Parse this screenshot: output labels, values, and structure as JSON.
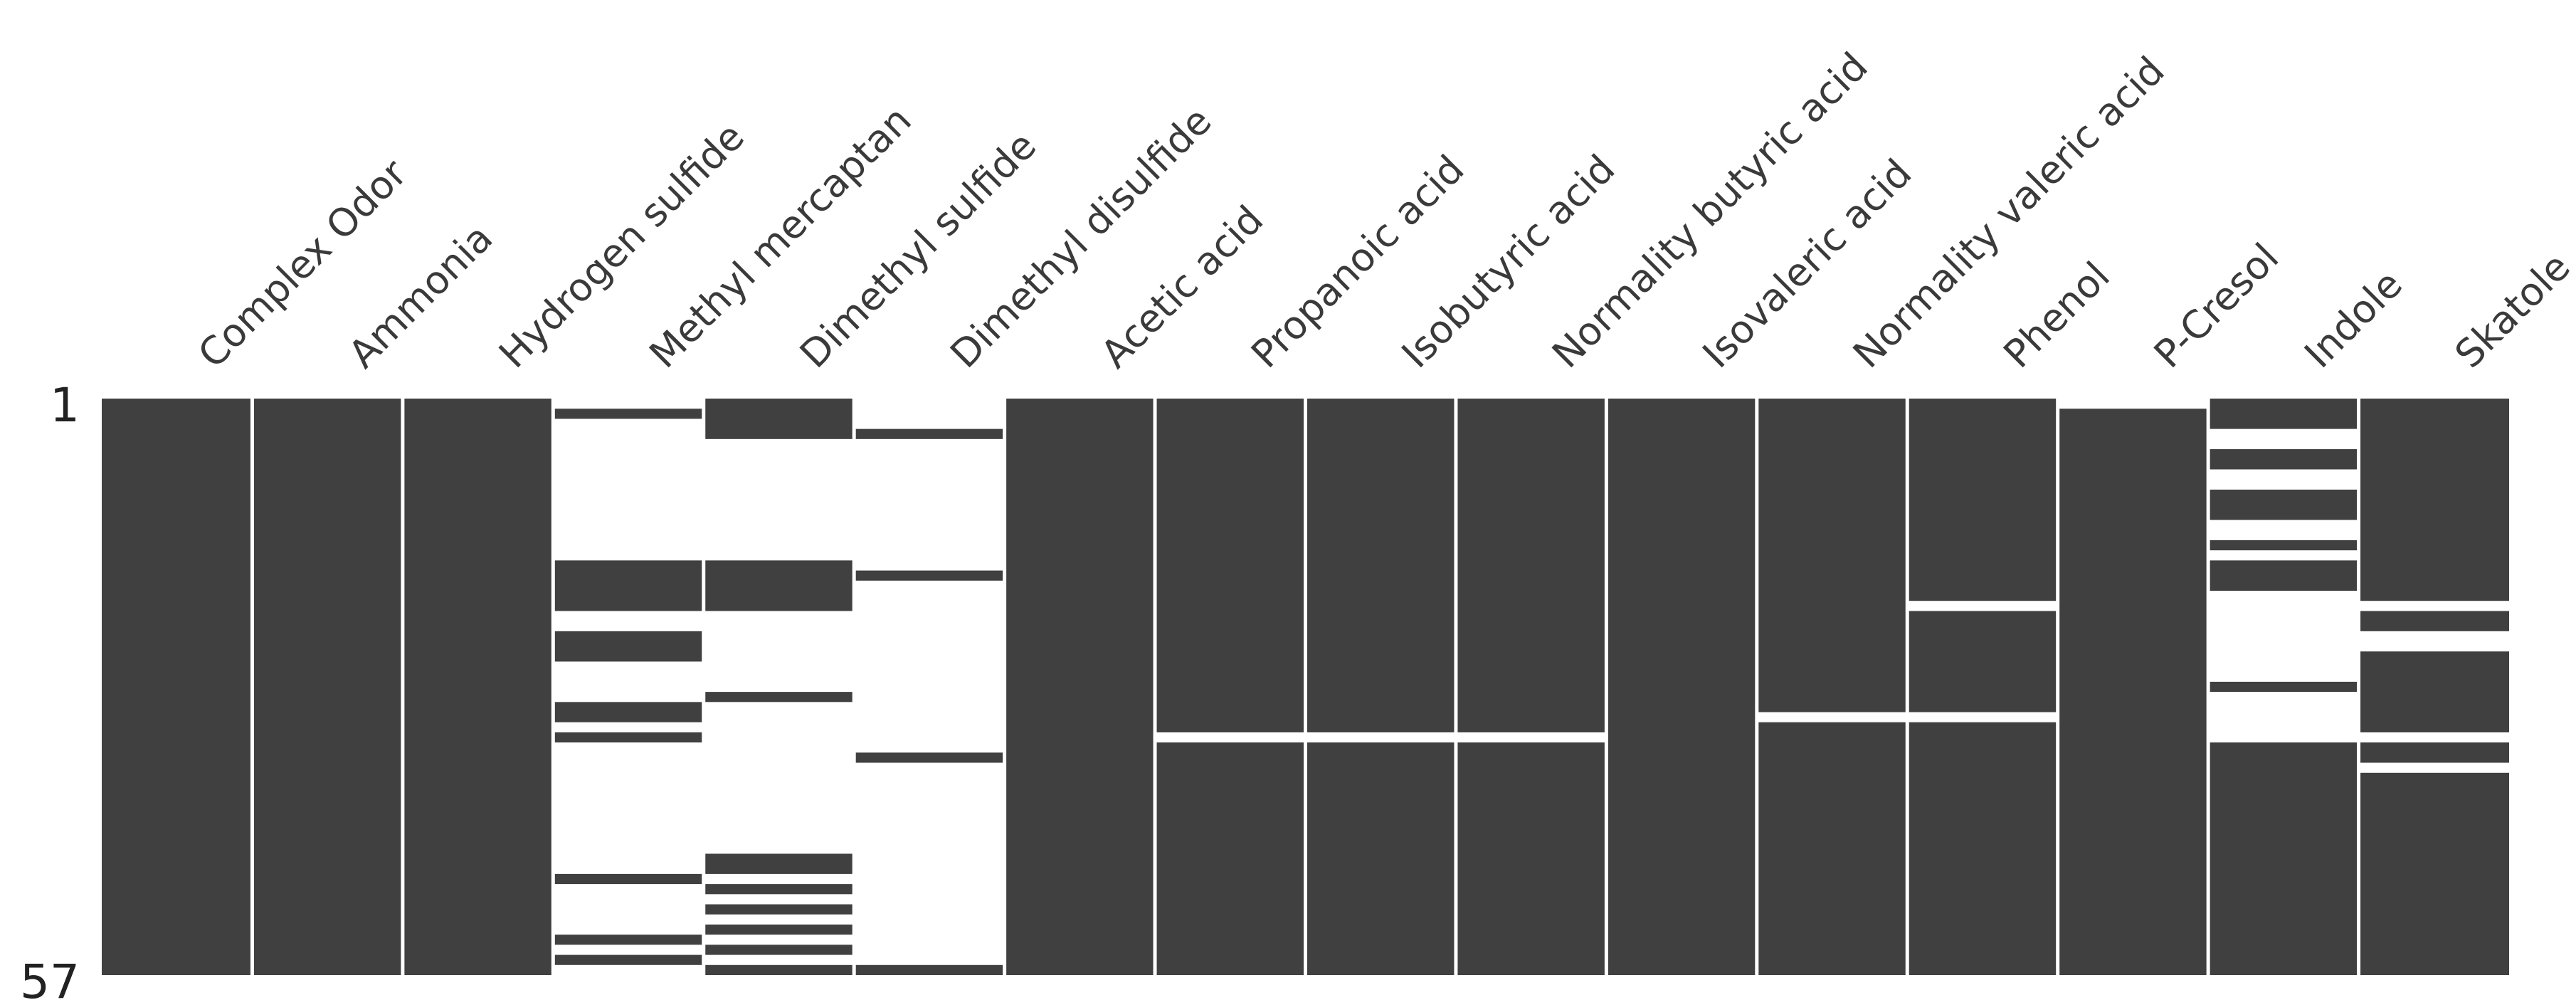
{
  "chart_data": {
    "type": "heatmap",
    "subtype": "missingness-matrix",
    "columns": [
      "Complex Odor",
      "Ammonia",
      "Hydrogen sulfide",
      "Methyl mercaptan",
      "Dimethyl sulfide",
      "Dimethyl disulfide",
      "Acetic acid",
      "Propanoic acid",
      "Isobutyric acid",
      "Normality butyric acid",
      "Isovaleric acid",
      "Normality valeric acid",
      "Phenol",
      "P-Cresol",
      "Indole",
      "Skatole"
    ],
    "n_rows": 57,
    "row_ticks": [
      "1",
      "57"
    ],
    "present_color": "#404040",
    "missing_color": "#ffffff",
    "grid": false,
    "missing_rows": {
      "Complex Odor": [],
      "Ammonia": [],
      "Hydrogen sulfide": [],
      "Methyl mercaptan": [
        1,
        3,
        4,
        5,
        6,
        7,
        8,
        9,
        10,
        11,
        12,
        13,
        14,
        15,
        16,
        22,
        23,
        27,
        28,
        29,
        30,
        33,
        35,
        36,
        37,
        38,
        39,
        40,
        41,
        42,
        43,
        44,
        45,
        46,
        47,
        49,
        50,
        51,
        52,
        53,
        55,
        57
      ],
      "Dimethyl sulfide": [
        5,
        6,
        7,
        8,
        9,
        10,
        11,
        12,
        13,
        14,
        15,
        16,
        22,
        23,
        24,
        25,
        26,
        27,
        28,
        29,
        31,
        32,
        33,
        34,
        35,
        36,
        37,
        38,
        39,
        40,
        41,
        42,
        43,
        44,
        45,
        48,
        50,
        52,
        54,
        56
      ],
      "Dimethyl disulfide": [
        1,
        2,
        3,
        5,
        6,
        7,
        8,
        9,
        10,
        11,
        12,
        13,
        14,
        15,
        16,
        17,
        19,
        20,
        21,
        22,
        23,
        24,
        25,
        26,
        27,
        28,
        29,
        30,
        31,
        32,
        33,
        34,
        35,
        37,
        38,
        39,
        40,
        41,
        42,
        43,
        44,
        45,
        46,
        47,
        48,
        49,
        50,
        51,
        52,
        53,
        54,
        55,
        56
      ],
      "Acetic acid": [],
      "Propanoic acid": [
        34
      ],
      "Isobutyric acid": [
        34
      ],
      "Normality butyric acid": [
        34
      ],
      "Isovaleric acid": [],
      "Normality valeric acid": [
        32
      ],
      "Phenol": [
        21,
        32
      ],
      "P-Cresol": [
        1
      ],
      "Indole": [
        4,
        5,
        8,
        9,
        13,
        14,
        16,
        20,
        21,
        22,
        23,
        24,
        25,
        26,
        27,
        28,
        30,
        31,
        32,
        33,
        34
      ],
      "Skatole": [
        21,
        24,
        25,
        34,
        37
      ]
    }
  }
}
